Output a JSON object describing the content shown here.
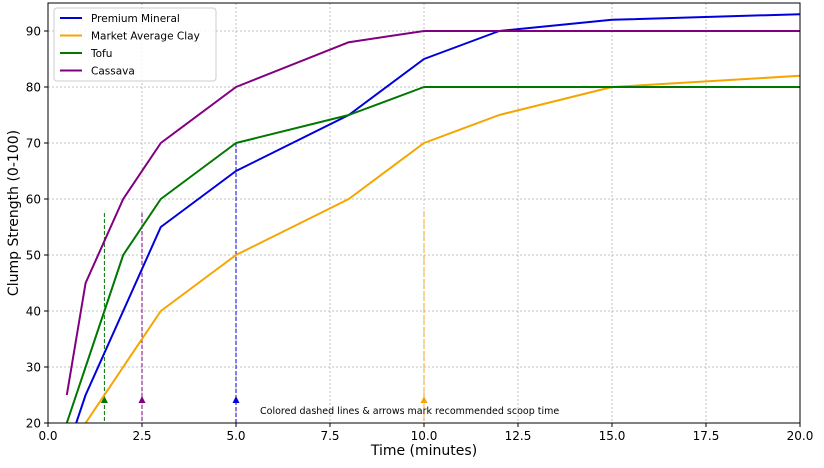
{
  "chart_data": {
    "type": "line",
    "title": "",
    "xlabel": "Time (minutes)",
    "ylabel": "Clump Strength (0-100)",
    "xlim": [
      0,
      20
    ],
    "ylim": [
      20,
      95
    ],
    "xticks": [
      0,
      2.5,
      5,
      7.5,
      10,
      12.5,
      15,
      17.5,
      20
    ],
    "xtick_labels": [
      "0.0",
      "2.5",
      "5.0",
      "7.5",
      "10.0",
      "12.5",
      "15.0",
      "17.5",
      "20.0"
    ],
    "yticks": [
      20,
      30,
      40,
      50,
      60,
      70,
      80,
      90
    ],
    "ytick_labels": [
      "20",
      "30",
      "40",
      "50",
      "60",
      "70",
      "80",
      "90"
    ],
    "grid": true,
    "legend_position": "top-left",
    "series": [
      {
        "name": "Premium Mineral",
        "color": "#0000dd",
        "x": [
          0.5,
          1,
          2,
          3,
          5,
          8,
          10,
          12,
          15,
          20
        ],
        "y": [
          15,
          25,
          40,
          55,
          65,
          75,
          85,
          90,
          92,
          93
        ]
      },
      {
        "name": "Market Average Clay",
        "color": "#f5a500",
        "x": [
          0.5,
          1,
          2,
          3,
          5,
          8,
          10,
          12,
          15,
          20
        ],
        "y": [
          10,
          20,
          30,
          40,
          50,
          60,
          70,
          75,
          80,
          82
        ]
      },
      {
        "name": "Tofu",
        "color": "#007700",
        "x": [
          0.5,
          1,
          2,
          3,
          5,
          8,
          10,
          12,
          15,
          20
        ],
        "y": [
          20,
          30,
          50,
          60,
          70,
          75,
          80,
          80,
          80,
          80
        ]
      },
      {
        "name": "Cassava",
        "color": "#800080",
        "x": [
          0.5,
          1,
          2,
          3,
          5,
          8,
          10,
          12,
          15,
          20
        ],
        "y": [
          25,
          45,
          60,
          70,
          80,
          88,
          90,
          90,
          90,
          90
        ]
      }
    ],
    "recommended_scoop": [
      {
        "series": "Tofu",
        "x": 1.5,
        "line_top": 57.5
      },
      {
        "series": "Cassava",
        "x": 2.5,
        "line_top": 57.5
      },
      {
        "series": "Premium Mineral",
        "x": 5,
        "line_top": 70
      },
      {
        "series": "Market Average Clay",
        "x": 10,
        "line_top": 57.5
      }
    ],
    "annotation": "Colored dashed lines & arrows mark recommended scoop time"
  }
}
